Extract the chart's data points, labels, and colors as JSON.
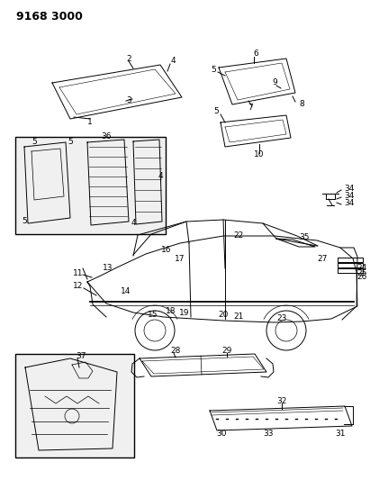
{
  "title": "9168 3000",
  "bg_color": "#ffffff",
  "line_color": "#000000",
  "title_fontsize": 9,
  "label_fontsize": 6.5,
  "fig_width": 4.11,
  "fig_height": 5.33
}
